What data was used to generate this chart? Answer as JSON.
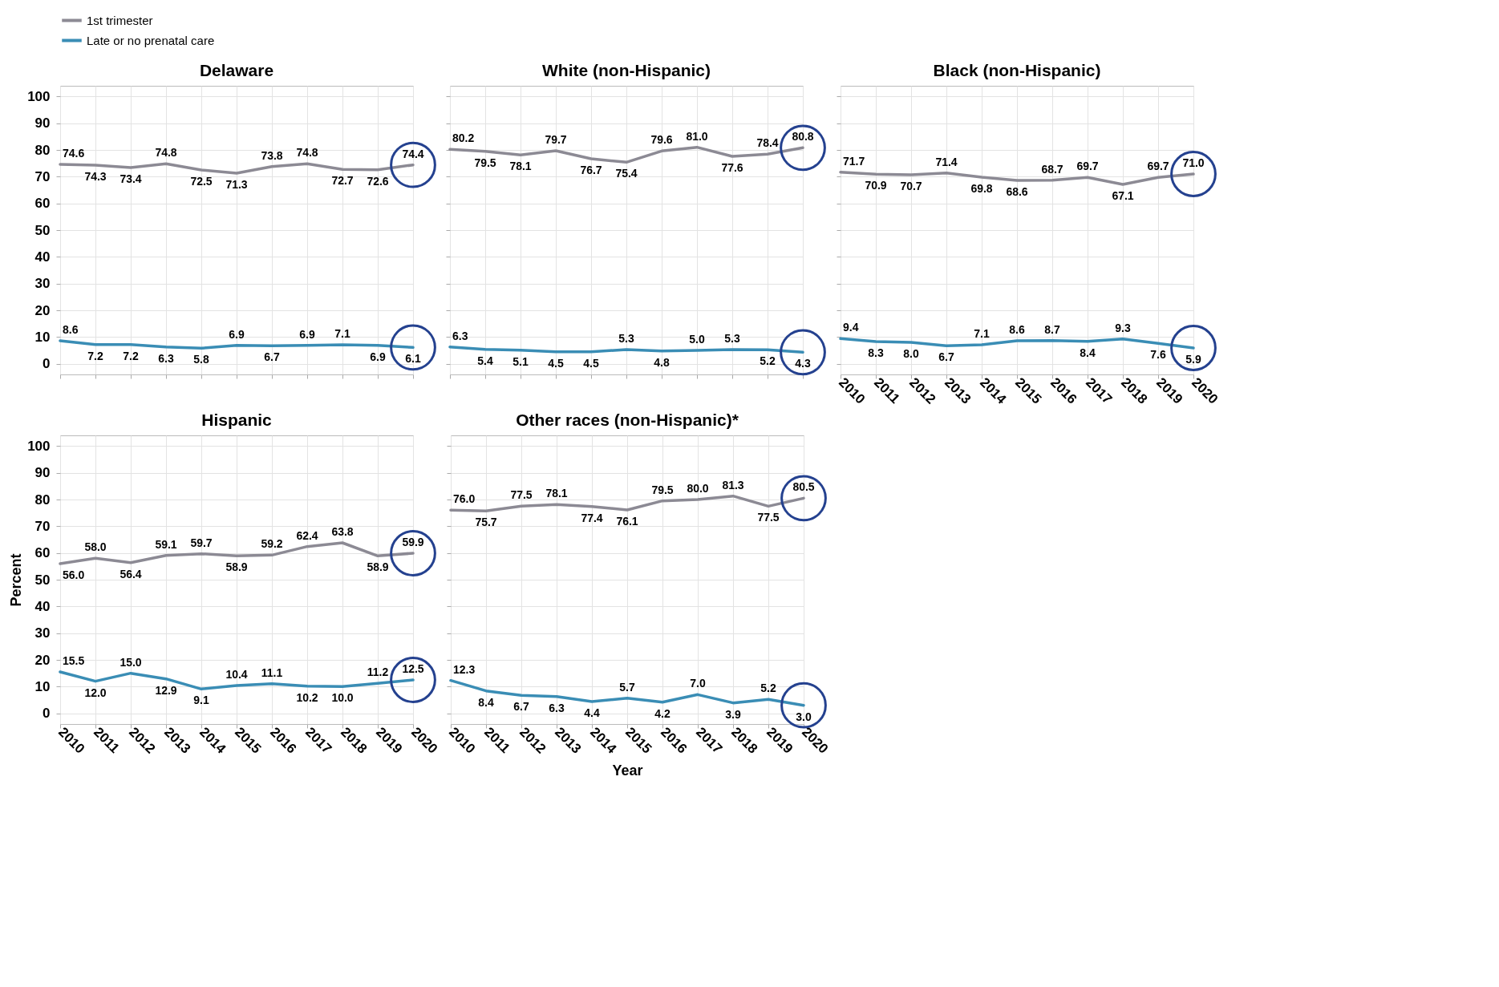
{
  "chart_data": [
    {
      "type": "line",
      "title": "Delaware",
      "x": [
        2010,
        2011,
        2012,
        2013,
        2014,
        2015,
        2016,
        2017,
        2018,
        2019,
        2020
      ],
      "xlim": [
        2010,
        2020
      ],
      "xticks": [
        2010,
        2011,
        2012,
        2013,
        2014,
        2015,
        2016,
        2017,
        2018,
        2019,
        2020
      ],
      "ylim": [
        -4,
        104
      ],
      "yticks": [
        0,
        10,
        20,
        30,
        40,
        50,
        60,
        70,
        80,
        90,
        100
      ],
      "grid": true,
      "legend": "top",
      "data_labels": true,
      "tick_labels": "y",
      "series": [
        {
          "name": "1st trimester",
          "color": "#8c8a94",
          "values": [
            74.6,
            74.3,
            73.4,
            74.8,
            72.5,
            71.3,
            73.8,
            74.8,
            72.7,
            72.6,
            74.4
          ],
          "value_labels": [
            "74.6",
            "74.3",
            "73.4",
            "74.8",
            "72.5",
            "71.3",
            "73.8",
            "74.8",
            "72.7",
            "72.6",
            "74.4"
          ]
        },
        {
          "name": "Late or no prenatal care",
          "color": "#3a8db5",
          "values": [
            8.6,
            7.2,
            7.2,
            6.3,
            5.8,
            6.9,
            6.7,
            6.9,
            7.1,
            6.9,
            6.1
          ],
          "value_labels": [
            "8.6",
            "7.2",
            "7.2",
            "6.3",
            "5.8",
            "6.9",
            "6.7",
            "6.9",
            "7.1",
            "6.9",
            "6.1"
          ]
        }
      ]
    },
    {
      "type": "line",
      "title": "White (non-Hispanic)",
      "x": [
        2010,
        2011,
        2012,
        2013,
        2014,
        2015,
        2016,
        2017,
        2018,
        2019,
        2020
      ],
      "xlim": [
        2010,
        2020
      ],
      "xticks": [
        2010,
        2011,
        2012,
        2013,
        2014,
        2015,
        2016,
        2017,
        2018,
        2019,
        2020
      ],
      "ylim": [
        -4,
        104
      ],
      "yticks": [
        0,
        10,
        20,
        30,
        40,
        50,
        60,
        70,
        80,
        90,
        100
      ],
      "grid": true,
      "data_labels": true,
      "tick_labels": false,
      "series": [
        {
          "name": "1st trimester",
          "color": "#8c8a94",
          "values": [
            80.2,
            79.5,
            78.1,
            79.7,
            76.7,
            75.4,
            79.6,
            81.0,
            77.6,
            78.4,
            80.8
          ],
          "value_labels": [
            "80.2",
            "79.5",
            "78.1",
            "79.7",
            "76.7",
            "75.4",
            "79.6",
            "81.0",
            "77.6",
            "78.4",
            "80.8"
          ]
        },
        {
          "name": "Late or no prenatal care",
          "color": "#3a8db5",
          "values": [
            6.3,
            5.4,
            5.1,
            4.5,
            4.5,
            5.3,
            4.8,
            5.0,
            5.3,
            5.2,
            4.3
          ],
          "value_labels": [
            "6.3",
            "5.4",
            "5.1",
            "4.5",
            "4.5",
            "5.3",
            "4.8",
            "5.0",
            "5.3",
            "5.2",
            "4.3"
          ]
        }
      ]
    },
    {
      "type": "line",
      "title": "Black (non-Hispanic)",
      "x": [
        2010,
        2011,
        2012,
        2013,
        2014,
        2015,
        2016,
        2017,
        2018,
        2019,
        2020
      ],
      "xlim": [
        2010,
        2020
      ],
      "xticks": [
        2010,
        2011,
        2012,
        2013,
        2014,
        2015,
        2016,
        2017,
        2018,
        2019,
        2020
      ],
      "ylim": [
        -4,
        104
      ],
      "yticks": [
        0,
        10,
        20,
        30,
        40,
        50,
        60,
        70,
        80,
        90,
        100
      ],
      "grid": true,
      "data_labels": true,
      "tick_labels": "x",
      "series": [
        {
          "name": "1st trimester",
          "color": "#8c8a94",
          "values": [
            71.7,
            70.9,
            70.7,
            71.4,
            69.8,
            68.6,
            68.7,
            69.7,
            67.1,
            69.7,
            71.0
          ],
          "value_labels": [
            "71.7",
            "70.9",
            "70.7",
            "71.4",
            "69.8",
            "68.6",
            "68.7",
            "69.7",
            "67.1",
            "69.7",
            "71.0"
          ]
        },
        {
          "name": "Late or no prenatal care",
          "color": "#3a8db5",
          "values": [
            9.4,
            8.3,
            8.0,
            6.7,
            7.1,
            8.6,
            8.7,
            8.4,
            9.3,
            7.6,
            5.9
          ],
          "value_labels": [
            "9.4",
            "8.3",
            "8.0",
            "6.7",
            "7.1",
            "8.6",
            "8.7",
            "8.4",
            "9.3",
            "7.6",
            "5.9"
          ]
        }
      ]
    },
    {
      "type": "line",
      "title": "Hispanic",
      "ylabel": "Percent",
      "x": [
        2010,
        2011,
        2012,
        2013,
        2014,
        2015,
        2016,
        2017,
        2018,
        2019,
        2020
      ],
      "xlim": [
        2010,
        2020
      ],
      "xticks": [
        2010,
        2011,
        2012,
        2013,
        2014,
        2015,
        2016,
        2017,
        2018,
        2019,
        2020
      ],
      "ylim": [
        -4,
        104
      ],
      "yticks": [
        0,
        10,
        20,
        30,
        40,
        50,
        60,
        70,
        80,
        90,
        100
      ],
      "grid": true,
      "data_labels": true,
      "series": [
        {
          "name": "1st trimester",
          "color": "#8c8a94",
          "values": [
            56.0,
            58.0,
            56.4,
            59.1,
            59.7,
            58.9,
            59.2,
            62.4,
            63.8,
            58.9,
            59.9
          ],
          "value_labels": [
            "56.0",
            "58.0",
            "56.4",
            "59.1",
            "59.7",
            "58.9",
            "59.2",
            "62.4",
            "63.8",
            "58.9",
            "59.9"
          ]
        },
        {
          "name": "Late or no prenatal care",
          "color": "#3a8db5",
          "values": [
            15.5,
            12.0,
            15.0,
            12.9,
            9.1,
            10.4,
            11.1,
            10.2,
            10.0,
            11.2,
            12.5
          ],
          "value_labels": [
            "15.5",
            "12.0",
            "15.0",
            "12.9",
            "9.1",
            "10.4",
            "11.1",
            "10.2",
            "10.0",
            "11.2",
            "12.5"
          ]
        }
      ]
    },
    {
      "type": "line",
      "title": "Other races (non-Hispanic)*",
      "xlabel": "Year",
      "x": [
        2010,
        2011,
        2012,
        2013,
        2014,
        2015,
        2016,
        2017,
        2018,
        2019,
        2020
      ],
      "xlim": [
        2010,
        2020
      ],
      "xticks": [
        2010,
        2011,
        2012,
        2013,
        2014,
        2015,
        2016,
        2017,
        2018,
        2019,
        2020
      ],
      "ylim": [
        -4,
        104
      ],
      "yticks": [
        0,
        10,
        20,
        30,
        40,
        50,
        60,
        70,
        80,
        90,
        100
      ],
      "grid": true,
      "data_labels": true,
      "tick_labels": "x",
      "series": [
        {
          "name": "1st trimester",
          "color": "#8c8a94",
          "values": [
            76.0,
            75.7,
            77.5,
            78.1,
            77.4,
            76.1,
            79.5,
            80.0,
            81.3,
            77.5,
            80.5
          ],
          "value_labels": [
            "76.0",
            "75.7",
            "77.5",
            "78.1",
            "77.4",
            "76.1",
            "79.5",
            "80.0",
            "81.3",
            "77.5",
            "80.5"
          ]
        },
        {
          "name": "Late or no prenatal care",
          "color": "#3a8db5",
          "values": [
            12.3,
            8.4,
            6.7,
            6.3,
            4.4,
            5.7,
            4.2,
            7.0,
            3.9,
            5.2,
            3.0
          ],
          "value_labels": [
            "12.3",
            "8.4",
            "6.7",
            "6.3",
            "4.4",
            "5.7",
            "4.2",
            "7.0",
            "3.9",
            "5.2",
            "3.0"
          ]
        }
      ]
    }
  ]
}
